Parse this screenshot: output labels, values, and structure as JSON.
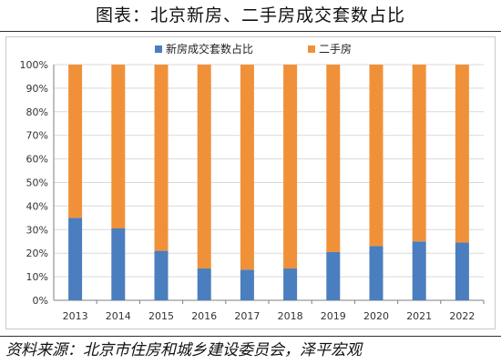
{
  "title": "图表：北京新房、二手房成交套数占比",
  "source": {
    "label": "资料来源",
    "sep": "：",
    "text": "北京市住房和城乡建设委员会，泽平宏观"
  },
  "colors": {
    "new_house": "#4a7ebf",
    "second_hand": "#f0913a",
    "grid": "#d9d9d9",
    "axis": "#7f7f7f"
  },
  "chart_data": {
    "type": "bar",
    "stacked": true,
    "percent": true,
    "categories": [
      "2013",
      "2014",
      "2015",
      "2016",
      "2017",
      "2018",
      "2019",
      "2020",
      "2021",
      "2022"
    ],
    "series": [
      {
        "name": "新房成交套数占比",
        "values": [
          35,
          30.5,
          21,
          13.5,
          13,
          13.5,
          20.5,
          23,
          25,
          24.5
        ]
      },
      {
        "name": "二手房",
        "values": [
          65,
          69.5,
          79,
          86.5,
          87,
          86.5,
          79.5,
          77,
          75,
          75.5
        ]
      }
    ],
    "ylim": [
      0,
      100
    ],
    "yticks": [
      "0%",
      "10%",
      "20%",
      "30%",
      "40%",
      "50%",
      "60%",
      "70%",
      "80%",
      "90%",
      "100%"
    ],
    "legend_position": "top-center",
    "grid": "horizontal"
  }
}
